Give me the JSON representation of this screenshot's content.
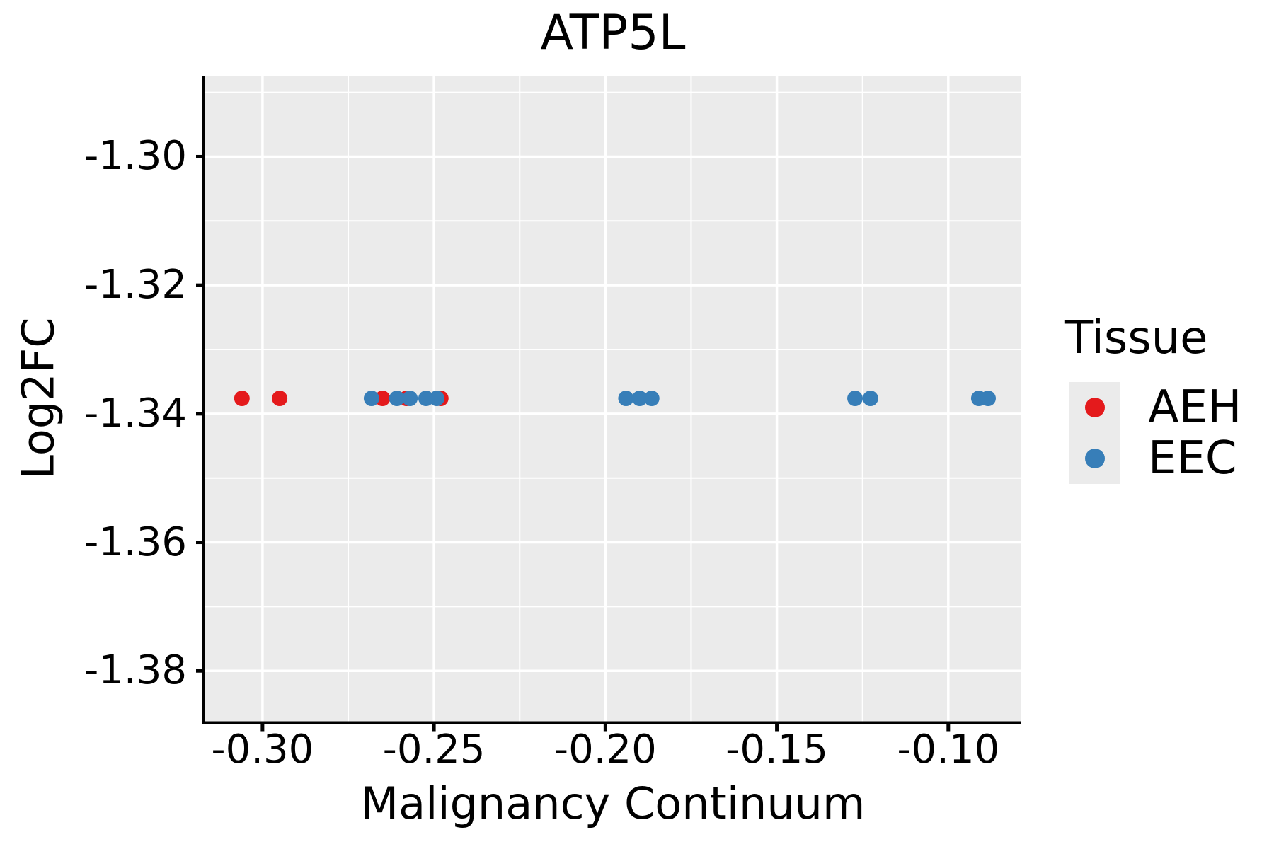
{
  "chart_data": {
    "type": "scatter",
    "title": "ATP5L",
    "xlabel": "Malignancy Continuum",
    "ylabel": "Log2FC",
    "xlim": [
      -0.3169,
      -0.0787
    ],
    "ylim": [
      -1.3879,
      -1.2874
    ],
    "x_ticks": [
      -0.3,
      -0.25,
      -0.2,
      -0.15,
      -0.1
    ],
    "x_tick_labels": [
      "-0.30",
      "-0.25",
      "-0.20",
      "-0.15",
      "-0.10"
    ],
    "y_ticks": [
      -1.3,
      -1.32,
      -1.34,
      -1.36,
      -1.38
    ],
    "y_tick_labels": [
      "-1.30",
      "-1.32",
      "-1.34",
      "-1.36",
      "-1.38"
    ],
    "grid": "major+minor",
    "legend": {
      "title": "Tissue",
      "position": "right"
    },
    "series": [
      {
        "name": "AEH",
        "color": "#E41A1C",
        "x": [
          -0.306,
          -0.295,
          -0.265,
          -0.258,
          -0.248
        ],
        "y": [
          -1.3376,
          -1.3376,
          -1.3376,
          -1.3376,
          -1.3376
        ]
      },
      {
        "name": "EEC",
        "color": "#377EB8",
        "x": [
          -0.2682,
          -0.2608,
          -0.257,
          -0.2523,
          -0.2492,
          -0.194,
          -0.19,
          -0.1865,
          -0.1272,
          -0.1227,
          -0.0911,
          -0.0884
        ],
        "y": [
          -1.3376,
          -1.3376,
          -1.3376,
          -1.3376,
          -1.3376,
          -1.3376,
          -1.3376,
          -1.3376,
          -1.3376,
          -1.3376,
          -1.3376,
          -1.3376
        ]
      }
    ],
    "style": {
      "panel_bg": "#EBEBEB",
      "grid_color": "#FFFFFF",
      "axis_color": "#000000",
      "text_color": "#000000"
    }
  }
}
